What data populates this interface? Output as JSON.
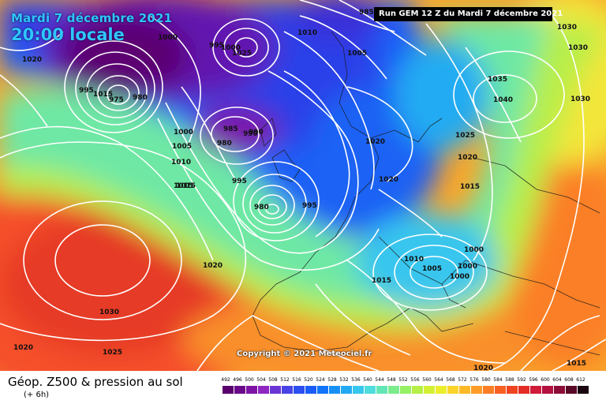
{
  "header": {
    "date": "Mardi 7 décembre 2021",
    "time": "20:00 locale",
    "run": "Run GEM 12 Z du Mardi 7 décembre 2021"
  },
  "copyright": "Copyright © 2021 Meteociel.fr",
  "footer": {
    "title": "Géop. Z500 & pression au sol",
    "subtitle": "(+ 6h)"
  },
  "legend": {
    "ticks": [
      "492",
      "496",
      "500",
      "504",
      "508",
      "512",
      "516",
      "520",
      "524",
      "528",
      "532",
      "536",
      "540",
      "544",
      "548",
      "552",
      "556",
      "560",
      "564",
      "568",
      "572",
      "576",
      "580",
      "584",
      "588",
      "592",
      "596",
      "600",
      "604",
      "608",
      "612"
    ],
    "colors": [
      "#5a006e",
      "#6a0a8a",
      "#7d14a4",
      "#8f26c2",
      "#6a35d6",
      "#4843e4",
      "#2c4ef0",
      "#1a5cf7",
      "#1274f9",
      "#1790f6",
      "#22abf2",
      "#37c6ee",
      "#4fdcdc",
      "#63e6b6",
      "#7aec8c",
      "#96f064",
      "#b6f046",
      "#d4f034",
      "#ecee2c",
      "#fad42a",
      "#fdba28",
      "#fd9c26",
      "#fc7e24",
      "#f86022",
      "#ef4420",
      "#e42c26",
      "#d01a3a",
      "#b41040",
      "#8c0c38",
      "#5a0828",
      "#1a0410"
    ]
  },
  "isobar_labels": [
    {
      "text": "1000"
    },
    {
      "text": "985"
    },
    {
      "text": "1010"
    },
    {
      "text": "1030"
    },
    {
      "text": "1030"
    },
    {
      "text": "1020"
    },
    {
      "text": "1005"
    },
    {
      "text": "1035"
    },
    {
      "text": "1040"
    },
    {
      "text": "1030"
    },
    {
      "text": "995"
    },
    {
      "text": "1015"
    },
    {
      "text": "975"
    },
    {
      "text": "980"
    },
    {
      "text": "1025"
    },
    {
      "text": "1000"
    },
    {
      "text": "985"
    },
    {
      "text": "990"
    },
    {
      "text": "980"
    },
    {
      "text": "1005"
    },
    {
      "text": "1020"
    },
    {
      "text": "1025"
    },
    {
      "text": "1010"
    },
    {
      "text": "1020"
    },
    {
      "text": "1020"
    },
    {
      "text": "1015"
    },
    {
      "text": "995"
    },
    {
      "text": "1015"
    },
    {
      "text": "980"
    },
    {
      "text": "995"
    },
    {
      "text": "1020"
    },
    {
      "text": "1000"
    },
    {
      "text": "1010"
    },
    {
      "text": "1005"
    },
    {
      "text": "1000"
    },
    {
      "text": "1015"
    },
    {
      "text": "1030"
    },
    {
      "text": "1020"
    },
    {
      "text": "1025"
    },
    {
      "text": "1020"
    },
    {
      "text": "1015"
    },
    {
      "text": "1000"
    },
    {
      "text": "1000"
    },
    {
      "text": "990"
    },
    {
      "text": "995"
    },
    {
      "text": "1015"
    }
  ]
}
